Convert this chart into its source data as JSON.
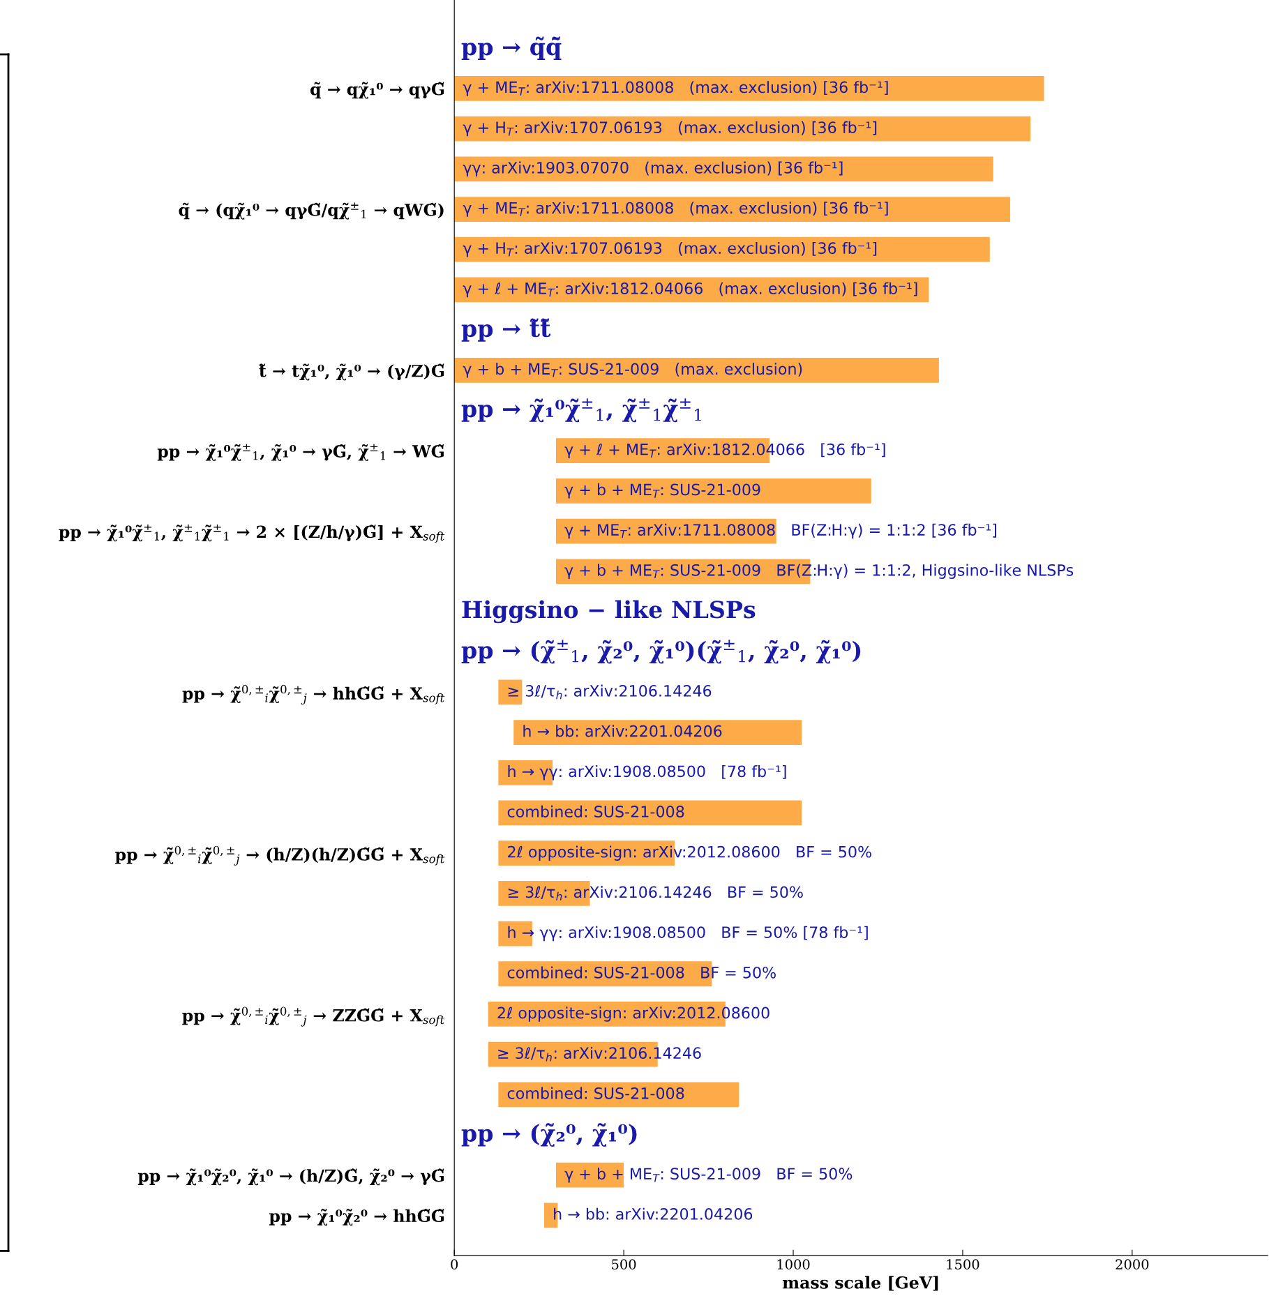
{
  "chart_data": {
    "type": "bar",
    "orientation": "horizontal",
    "xlabel": "mass scale [GeV]",
    "xlim": [
      0,
      2400
    ],
    "xticks": [
      0,
      500,
      1000,
      1500,
      2000
    ],
    "color": "#fdaa48",
    "categories": [
      null,
      "q̃ → qχ̃₁⁰ → qγG̃",
      null,
      null,
      "q̃ → (qχ̃₁⁰ → qγG̃/qχ̃$^{±}$$_{1}$ → qWG̃)",
      null,
      null,
      null,
      "t̃ → tχ̃₁⁰, χ̃₁⁰ → (γ/Z)G̃",
      null,
      "pp → χ̃₁⁰χ̃$^{±}$$_{1}$, χ̃₁⁰ → γG̃, χ̃$^{±}$$_{1}$ → WG̃",
      null,
      "pp → χ̃₁⁰χ̃$^{±}$$_{1}$, χ̃$^{±}$$_{1}$χ̃$^{±}$$_{1}$ → 2 × [(Z/h/γ)G̃] + X$_{soft}$",
      null,
      null,
      null,
      "pp → χ̃$^{0,±}$$_{i}$χ̃$^{0,±}$$_{j}$ → hhG̃G̃ + X$_{soft}$",
      null,
      null,
      null,
      "pp → χ̃$^{0,±}$$_{i}$χ̃$^{0,±}$$_{j}$ → (h/Z)(h/Z)G̃G̃ + X$_{soft}$",
      null,
      null,
      null,
      "pp → χ̃$^{0,±}$$_{i}$χ̃$^{0,±}$$_{j}$ → ZZG̃G̃ + X$_{soft}$",
      null,
      null,
      null,
      "pp → χ̃₁⁰χ̃₂⁰, χ̃₁⁰ → (h/Z)G̃, χ̃₂⁰ → γG̃",
      "pp → χ̃₁⁰χ̃₂⁰ → hhG̃G̃"
    ],
    "base": [
      null,
      0,
      0,
      0,
      0,
      0,
      0,
      null,
      0,
      null,
      300,
      300,
      300,
      300,
      null,
      null,
      130,
      175,
      130,
      130,
      130,
      130,
      130,
      130,
      100,
      100,
      130,
      null,
      300,
      265
    ],
    "values": [
      null,
      1740,
      1700,
      1590,
      1640,
      1580,
      1400,
      null,
      1430,
      null,
      630,
      930,
      650,
      750,
      null,
      null,
      70,
      850,
      160,
      895,
      520,
      270,
      100,
      630,
      700,
      500,
      710,
      null,
      200,
      40
    ],
    "annotations": [
      "pp → q̃q̃̄",
      "γ + ME$_{T}$: arXiv:1711.08008   (max. exclusion) [36 fb⁻¹]",
      "γ + H$_{T}$: arXiv:1707.06193   (max. exclusion) [36 fb⁻¹]",
      "γγ: arXiv:1903.07070   (max. exclusion) [36 fb⁻¹]",
      "γ + ME$_{T}$: arXiv:1711.08008   (max. exclusion) [36 fb⁻¹]",
      "γ + H$_{T}$: arXiv:1707.06193   (max. exclusion) [36 fb⁻¹]",
      "γ + ℓ + ME$_{T}$: arXiv:1812.04066   (max. exclusion) [36 fb⁻¹]",
      "pp → t̃t̃̄",
      "γ + b + ME$_{T}$: SUS-21-009   (max. exclusion)",
      "pp → χ̃₁⁰χ̃$^{±}$$_{1}$, χ̃$^{±}$$_{1}$χ̃$^{±}$$_{1}$",
      "γ + ℓ + ME$_{T}$: arXiv:1812.04066   [36 fb⁻¹]",
      "γ + b + ME$_{T}$: SUS-21-009",
      "γ + ME$_{T}$: arXiv:1711.08008   BF(Z:H:γ) = 1:1:2 [36 fb⁻¹]",
      "γ + b + ME$_{T}$: SUS-21-009   BF(Z:H:γ) = 1:1:2, Higgsino-like NLSPs",
      "Higgsino − like NLSPs",
      "pp → (χ̃$^{±}$$_{1}$, χ̃₂⁰, χ̃₁⁰)(χ̃$^{±}$$_{1}$, χ̃₂⁰, χ̃₁⁰)",
      "≥ 3ℓ/τ$_{h}$: arXiv:2106.14246",
      "h → bb: arXiv:2201.04206",
      "h → γγ: arXiv:1908.08500   [78 fb⁻¹]",
      "combined: SUS-21-008",
      "2ℓ opposite-sign: arXiv:2012.08600   BF = 50%",
      "≥ 3ℓ/τ$_{h}$: arXiv:2106.14246   BF = 50%",
      "h → γγ: arXiv:1908.08500   BF = 50% [78 fb⁻¹]",
      "combined: SUS-21-008   BF = 50%",
      "2ℓ opposite-sign: arXiv:2012.08600",
      "≥ 3ℓ/τ$_{h}$: arXiv:2106.14246",
      "combined: SUS-21-008",
      "pp → (χ̃₂⁰, χ̃₁⁰)",
      "γ + b + ME$_{T}$: SUS-21-009   BF = 50%",
      "h → bb: arXiv:2201.04206"
    ]
  }
}
